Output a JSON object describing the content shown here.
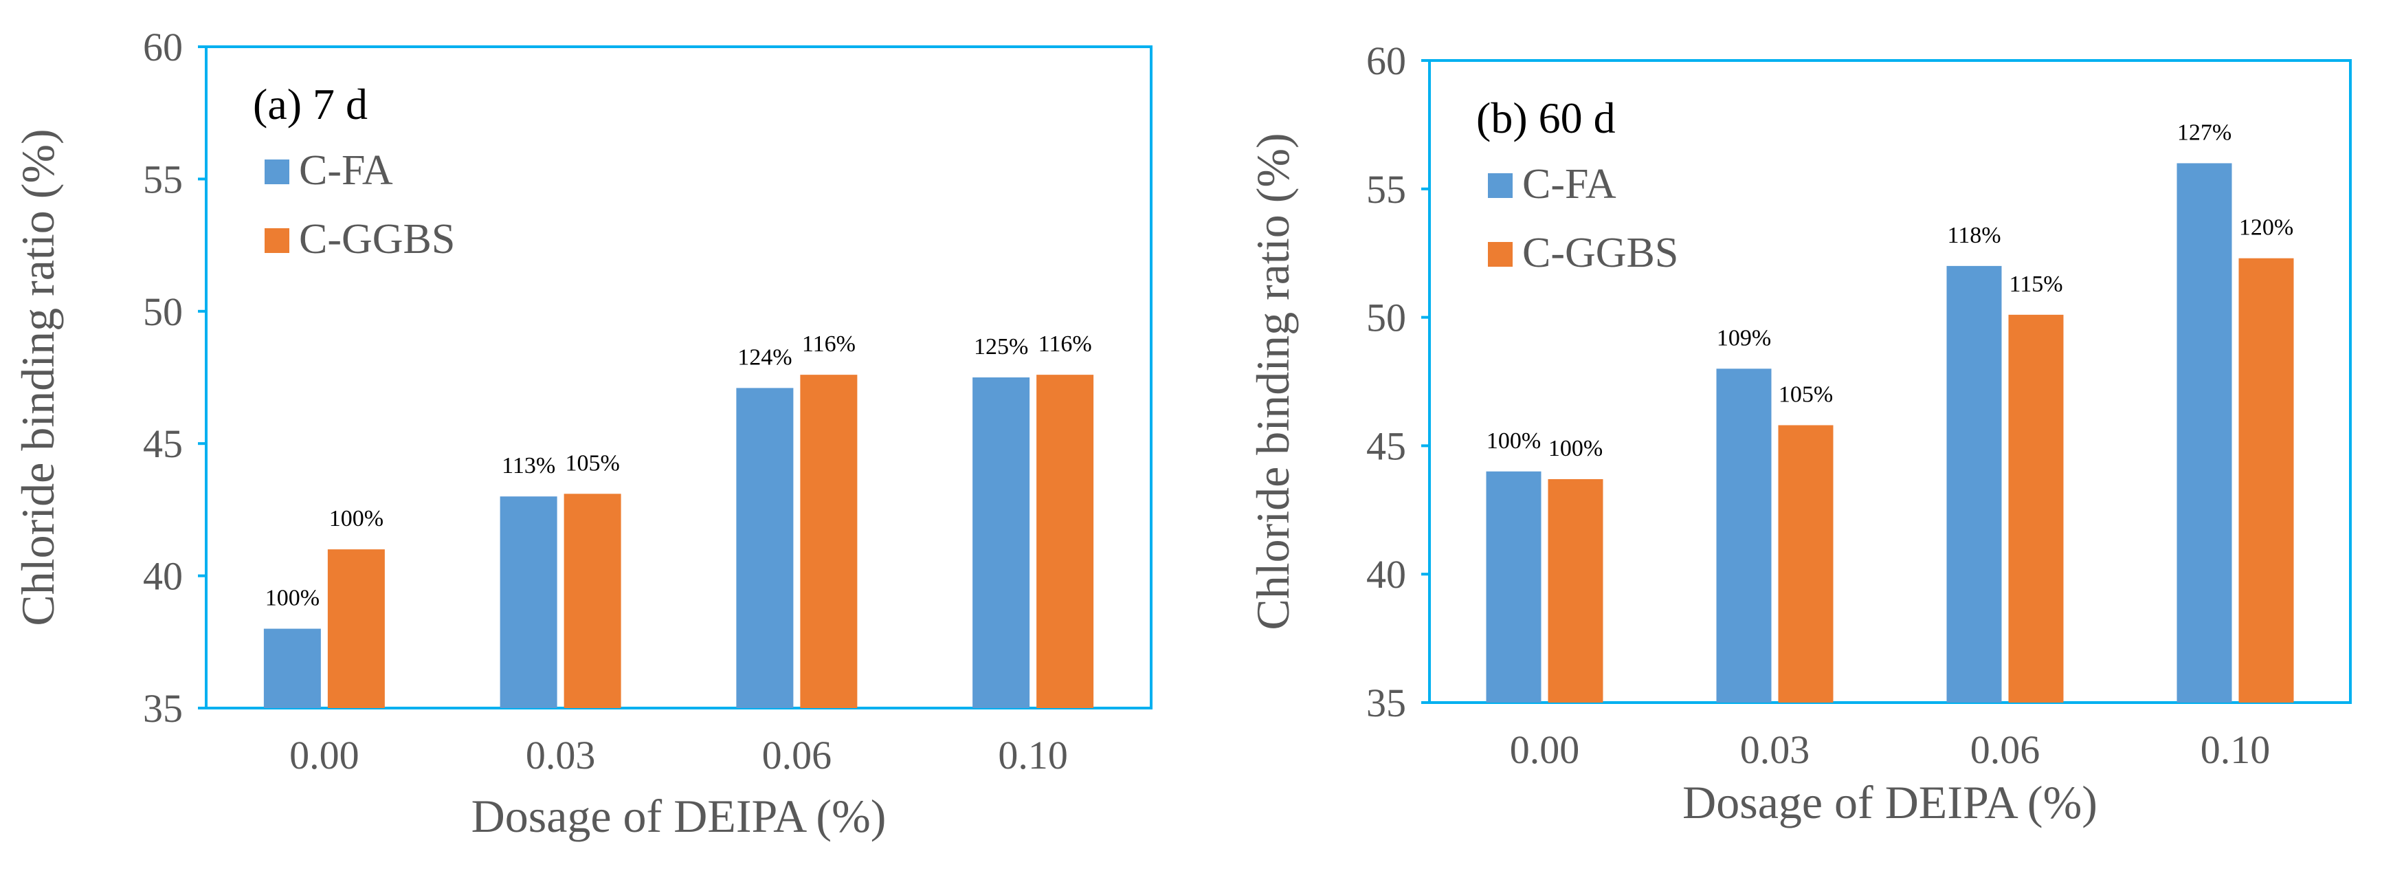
{
  "colors": {
    "series1": "#5b9bd5",
    "series2": "#ed7d31",
    "frame": "#00b0f0",
    "text": "#595959"
  },
  "chart_data": [
    {
      "type": "bar",
      "title": "(a) 7 d",
      "xlabel": "Dosage of DEIPA (%)",
      "ylabel": "Chloride binding ratio (%)",
      "ylim": [
        35,
        60
      ],
      "yticks": [
        "35",
        "40",
        "45",
        "50",
        "55",
        "60"
      ],
      "categories": [
        "0.00",
        "0.03",
        "0.06",
        "0.10"
      ],
      "legend_position": "top-left",
      "series": [
        {
          "name": "C-FA",
          "values": [
            38.0,
            43.0,
            47.1,
            47.5
          ],
          "labels": [
            "100%",
            "113%",
            "124%",
            "125%"
          ]
        },
        {
          "name": "C-GGBS",
          "values": [
            41.0,
            43.1,
            47.6,
            47.6
          ],
          "labels": [
            "100%",
            "105%",
            "116%",
            "116%"
          ]
        }
      ]
    },
    {
      "type": "bar",
      "title": "(b) 60 d",
      "xlabel": "Dosage of DEIPA (%)",
      "ylabel": "Chloride binding ratio (%)",
      "ylim": [
        35,
        60
      ],
      "yticks": [
        "35",
        "40",
        "45",
        "50",
        "55",
        "60"
      ],
      "categories": [
        "0.00",
        "0.03",
        "0.06",
        "0.10"
      ],
      "legend_position": "top-left",
      "series": [
        {
          "name": "C-FA",
          "values": [
            44.0,
            48.0,
            52.0,
            56.0
          ],
          "labels": [
            "100%",
            "109%",
            "118%",
            "127%"
          ]
        },
        {
          "name": "C-GGBS",
          "values": [
            43.7,
            45.8,
            50.1,
            52.3
          ],
          "labels": [
            "100%",
            "105%",
            "115%",
            "120%"
          ]
        }
      ]
    }
  ]
}
